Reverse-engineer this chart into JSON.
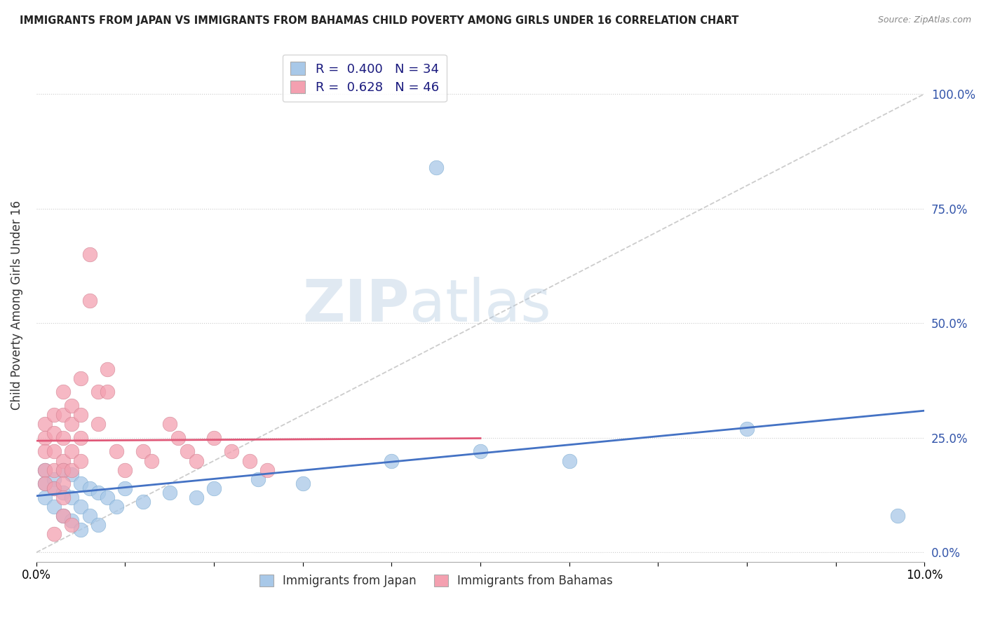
{
  "title": "IMMIGRANTS FROM JAPAN VS IMMIGRANTS FROM BAHAMAS CHILD POVERTY AMONG GIRLS UNDER 16 CORRELATION CHART",
  "source": "Source: ZipAtlas.com",
  "ylabel": "Child Poverty Among Girls Under 16",
  "xlim": [
    0.0,
    0.1
  ],
  "ylim": [
    -0.02,
    1.1
  ],
  "yticks": [
    0.0,
    0.25,
    0.5,
    0.75,
    1.0
  ],
  "ytick_labels": [
    "0.0%",
    "25.0%",
    "50.0%",
    "75.0%",
    "100.0%"
  ],
  "xticks": [
    0.0,
    0.01,
    0.02,
    0.03,
    0.04,
    0.05,
    0.06,
    0.07,
    0.08,
    0.09,
    0.1
  ],
  "xtick_labels": [
    "0.0%",
    "",
    "",
    "",
    "",
    "",
    "",
    "",
    "",
    "",
    "10.0%"
  ],
  "japan_R": 0.4,
  "japan_N": 34,
  "bahamas_R": 0.628,
  "bahamas_N": 46,
  "japan_color": "#a8c8e8",
  "bahamas_color": "#f4a0b0",
  "japan_line_color": "#4472c4",
  "bahamas_line_color": "#e05878",
  "diagonal_line_color": "#c0c0c0",
  "japan_points": [
    [
      0.001,
      0.18
    ],
    [
      0.001,
      0.15
    ],
    [
      0.001,
      0.12
    ],
    [
      0.002,
      0.16
    ],
    [
      0.002,
      0.14
    ],
    [
      0.002,
      0.1
    ],
    [
      0.003,
      0.18
    ],
    [
      0.003,
      0.13
    ],
    [
      0.003,
      0.08
    ],
    [
      0.004,
      0.17
    ],
    [
      0.004,
      0.12
    ],
    [
      0.004,
      0.07
    ],
    [
      0.005,
      0.15
    ],
    [
      0.005,
      0.1
    ],
    [
      0.005,
      0.05
    ],
    [
      0.006,
      0.14
    ],
    [
      0.006,
      0.08
    ],
    [
      0.007,
      0.13
    ],
    [
      0.007,
      0.06
    ],
    [
      0.008,
      0.12
    ],
    [
      0.009,
      0.1
    ],
    [
      0.01,
      0.14
    ],
    [
      0.012,
      0.11
    ],
    [
      0.015,
      0.13
    ],
    [
      0.018,
      0.12
    ],
    [
      0.02,
      0.14
    ],
    [
      0.025,
      0.16
    ],
    [
      0.03,
      0.15
    ],
    [
      0.04,
      0.2
    ],
    [
      0.045,
      0.84
    ],
    [
      0.05,
      0.22
    ],
    [
      0.06,
      0.2
    ],
    [
      0.08,
      0.27
    ],
    [
      0.097,
      0.08
    ]
  ],
  "bahamas_points": [
    [
      0.001,
      0.28
    ],
    [
      0.001,
      0.25
    ],
    [
      0.001,
      0.22
    ],
    [
      0.001,
      0.18
    ],
    [
      0.001,
      0.15
    ],
    [
      0.002,
      0.3
    ],
    [
      0.002,
      0.26
    ],
    [
      0.002,
      0.22
    ],
    [
      0.002,
      0.18
    ],
    [
      0.002,
      0.14
    ],
    [
      0.003,
      0.35
    ],
    [
      0.003,
      0.3
    ],
    [
      0.003,
      0.25
    ],
    [
      0.003,
      0.2
    ],
    [
      0.003,
      0.18
    ],
    [
      0.003,
      0.15
    ],
    [
      0.003,
      0.12
    ],
    [
      0.003,
      0.08
    ],
    [
      0.004,
      0.32
    ],
    [
      0.004,
      0.28
    ],
    [
      0.004,
      0.22
    ],
    [
      0.004,
      0.18
    ],
    [
      0.005,
      0.38
    ],
    [
      0.005,
      0.3
    ],
    [
      0.005,
      0.25
    ],
    [
      0.005,
      0.2
    ],
    [
      0.006,
      0.65
    ],
    [
      0.006,
      0.55
    ],
    [
      0.007,
      0.35
    ],
    [
      0.007,
      0.28
    ],
    [
      0.008,
      0.4
    ],
    [
      0.008,
      0.35
    ],
    [
      0.009,
      0.22
    ],
    [
      0.01,
      0.18
    ],
    [
      0.012,
      0.22
    ],
    [
      0.013,
      0.2
    ],
    [
      0.015,
      0.28
    ],
    [
      0.016,
      0.25
    ],
    [
      0.017,
      0.22
    ],
    [
      0.018,
      0.2
    ],
    [
      0.02,
      0.25
    ],
    [
      0.022,
      0.22
    ],
    [
      0.024,
      0.2
    ],
    [
      0.026,
      0.18
    ],
    [
      0.002,
      0.04
    ],
    [
      0.004,
      0.06
    ]
  ]
}
